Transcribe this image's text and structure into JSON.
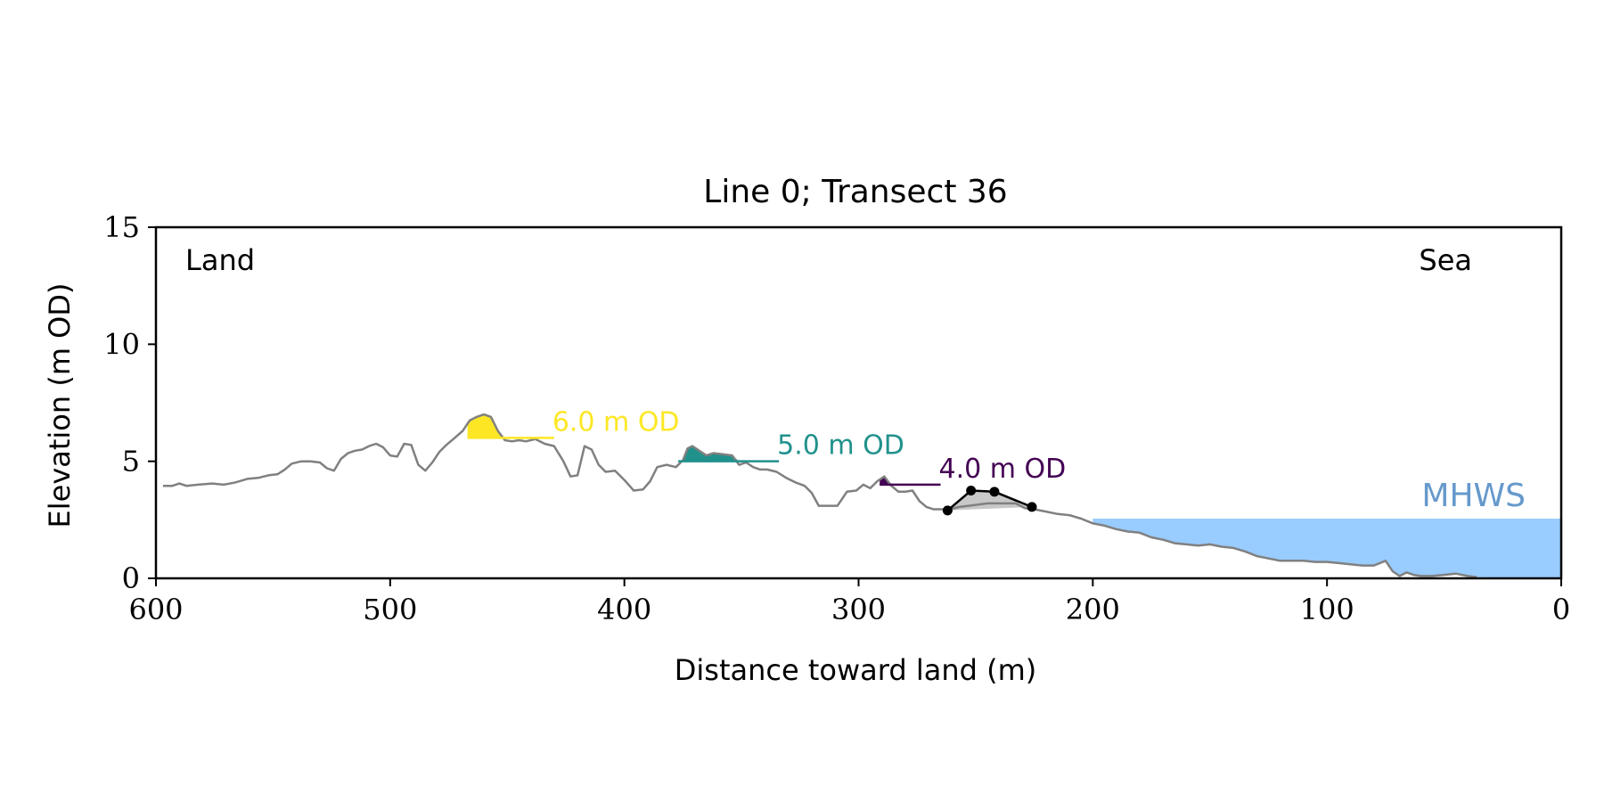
{
  "chart_data": {
    "type": "line",
    "title": "Line 0; Transect 36",
    "xlabel": "Distance toward land (m)",
    "ylabel": "Elevation (m OD)",
    "xlim": [
      600,
      0
    ],
    "ylim": [
      0,
      15
    ],
    "x_ticks": [
      600,
      500,
      400,
      300,
      200,
      100,
      0
    ],
    "y_ticks": [
      0,
      5,
      10,
      15
    ],
    "grid": false,
    "annotations": {
      "land": "Land",
      "sea": "Sea"
    },
    "profile": {
      "color": "#808080",
      "x": [
        597,
        593,
        590,
        587,
        582,
        576,
        571,
        566,
        561,
        556,
        552,
        548,
        545,
        542,
        538,
        534,
        530,
        527,
        524,
        521,
        518,
        515,
        512,
        509,
        506,
        503,
        500,
        497,
        494,
        491,
        488,
        485,
        482,
        479,
        476,
        473,
        469,
        466,
        463,
        460,
        457,
        454,
        451,
        448,
        445,
        442,
        438,
        434,
        430,
        426,
        423,
        420,
        417,
        414,
        411,
        408,
        404,
        400,
        396,
        392,
        389,
        386,
        382,
        378,
        375,
        373,
        371,
        368,
        365,
        362,
        358,
        354,
        351,
        348,
        345,
        342,
        339,
        335,
        331,
        327,
        323,
        320,
        317,
        313,
        309,
        305,
        301,
        298,
        295,
        292,
        289,
        286,
        283,
        280,
        277,
        274,
        271,
        268,
        265,
        261,
        257,
        253,
        249,
        245,
        241,
        237,
        233,
        229,
        225,
        220,
        215,
        210,
        205,
        200,
        195,
        190,
        185,
        180,
        175,
        170,
        165,
        160,
        155,
        150,
        145,
        140,
        135,
        130,
        125,
        120,
        115,
        110,
        105,
        100,
        95,
        90,
        85,
        80,
        75,
        72,
        69,
        66,
        63,
        60,
        55,
        50,
        45,
        40,
        36
      ],
      "y": [
        3.95,
        3.95,
        4.05,
        3.95,
        4.0,
        4.05,
        4.0,
        4.1,
        4.25,
        4.3,
        4.4,
        4.45,
        4.65,
        4.9,
        5.0,
        5.0,
        4.95,
        4.7,
        4.6,
        5.1,
        5.35,
        5.45,
        5.5,
        5.65,
        5.75,
        5.6,
        5.25,
        5.2,
        5.75,
        5.7,
        4.85,
        4.6,
        4.95,
        5.4,
        5.7,
        5.95,
        6.3,
        6.75,
        6.9,
        7.0,
        6.9,
        6.3,
        5.9,
        5.85,
        5.9,
        5.85,
        5.95,
        5.75,
        5.65,
        5.0,
        4.35,
        4.4,
        5.65,
        5.5,
        4.85,
        4.55,
        4.6,
        4.2,
        3.75,
        3.8,
        4.15,
        4.75,
        4.85,
        4.75,
        5.05,
        5.55,
        5.65,
        5.45,
        5.25,
        5.35,
        5.3,
        5.25,
        4.85,
        4.95,
        4.75,
        4.65,
        4.65,
        4.55,
        4.3,
        4.1,
        3.95,
        3.65,
        3.1,
        3.1,
        3.1,
        3.7,
        3.75,
        4.0,
        3.85,
        4.15,
        4.35,
        3.95,
        3.7,
        3.7,
        3.75,
        3.3,
        3.05,
        2.95,
        2.95,
        2.95,
        3.05,
        3.1,
        3.15,
        3.2,
        3.2,
        3.2,
        3.2,
        3.0,
        2.95,
        2.85,
        2.75,
        2.7,
        2.55,
        2.35,
        2.25,
        2.1,
        2.0,
        1.95,
        1.75,
        1.65,
        1.5,
        1.45,
        1.4,
        1.45,
        1.35,
        1.3,
        1.15,
        0.95,
        0.85,
        0.75,
        0.75,
        0.75,
        0.7,
        0.7,
        0.65,
        0.6,
        0.55,
        0.55,
        0.75,
        0.3,
        0.1,
        0.25,
        0.15,
        0.1,
        0.1,
        0.15,
        0.2,
        0.1,
        0.05
      ]
    },
    "contours": [
      {
        "label": "6.0 m OD",
        "level": 6.0,
        "x_start": 467,
        "x_end": 430,
        "color": "#fde725"
      },
      {
        "label": "5.0 m OD",
        "level": 5.0,
        "x_start": 377,
        "x_end": 334,
        "color": "#21918c"
      },
      {
        "label": "4.0 m OD",
        "level": 4.0,
        "x_start": 291,
        "x_end": 265,
        "color": "#440154"
      }
    ],
    "dune_crest": {
      "color": "#000000",
      "fill_color": "#c8c8c8",
      "points": [
        {
          "x": 262,
          "y": 2.9
        },
        {
          "x": 252,
          "y": 3.75
        },
        {
          "x": 242,
          "y": 3.7
        },
        {
          "x": 226,
          "y": 3.05
        }
      ]
    },
    "mhws": {
      "label": "MHWS",
      "level": 2.55,
      "x_start": 200,
      "x_end": 0,
      "fill_color": "#99ccff",
      "label_color": "#6699cc"
    }
  }
}
